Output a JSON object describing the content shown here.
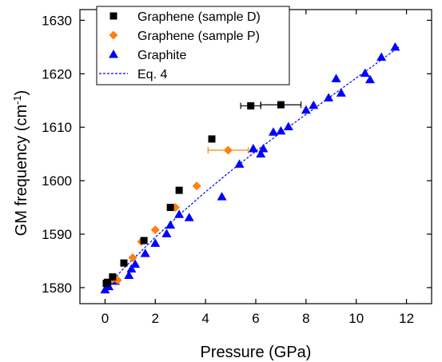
{
  "chart_data": {
    "type": "scatter",
    "xlabel": "Pressure (GPa)",
    "ylabel": {
      "main": "GM frequency (cm",
      "sup": "-1",
      "close": ")"
    },
    "xlim": [
      -1,
      13
    ],
    "ylim": [
      1577,
      1632
    ],
    "xticks": [
      0,
      2,
      4,
      6,
      8,
      10,
      12
    ],
    "yticks": [
      1580,
      1590,
      1600,
      1610,
      1620,
      1630
    ],
    "legend_position": "top-left",
    "series": [
      {
        "name": "Graphene (sample D)",
        "marker": "square",
        "color": "#000000",
        "points": [
          {
            "x": 0.05,
            "y": 1580.8
          },
          {
            "x": 0.1,
            "y": 1581.0
          },
          {
            "x": 0.3,
            "y": 1582.0
          },
          {
            "x": 0.75,
            "y": 1584.6
          },
          {
            "x": 1.55,
            "y": 1588.8
          },
          {
            "x": 2.6,
            "y": 1595.0
          },
          {
            "x": 2.95,
            "y": 1598.2
          },
          {
            "x": 4.25,
            "y": 1607.8
          },
          {
            "x": 5.8,
            "y": 1614.0,
            "xerr": 0.4
          },
          {
            "x": 7.0,
            "y": 1614.2,
            "xerr": 0.8
          }
        ]
      },
      {
        "name": "Graphene (sample P)",
        "marker": "diamond",
        "color": "#ff7f0e",
        "points": [
          {
            "x": 0.3,
            "y": 1581.6
          },
          {
            "x": 0.5,
            "y": 1581.4
          },
          {
            "x": 1.1,
            "y": 1585.6
          },
          {
            "x": 1.45,
            "y": 1588.6
          },
          {
            "x": 2.0,
            "y": 1590.8
          },
          {
            "x": 2.8,
            "y": 1595.0
          },
          {
            "x": 3.65,
            "y": 1599.0
          },
          {
            "x": 4.9,
            "y": 1605.7,
            "xerr": 0.8
          }
        ]
      },
      {
        "name": "Graphite",
        "marker": "triangle",
        "color": "#0000ff",
        "points": [
          {
            "x": 0.0,
            "y": 1579.6
          },
          {
            "x": 0.15,
            "y": 1580.2
          },
          {
            "x": 0.4,
            "y": 1581.2
          },
          {
            "x": 0.95,
            "y": 1582.3
          },
          {
            "x": 1.05,
            "y": 1583.5
          },
          {
            "x": 1.2,
            "y": 1584.4
          },
          {
            "x": 1.6,
            "y": 1586.4
          },
          {
            "x": 2.0,
            "y": 1588.3
          },
          {
            "x": 2.45,
            "y": 1590.1
          },
          {
            "x": 2.6,
            "y": 1591.7
          },
          {
            "x": 2.95,
            "y": 1593.7
          },
          {
            "x": 3.35,
            "y": 1593.1
          },
          {
            "x": 4.65,
            "y": 1597.0
          },
          {
            "x": 5.35,
            "y": 1603.1
          },
          {
            "x": 5.9,
            "y": 1606.0
          },
          {
            "x": 6.2,
            "y": 1605.0
          },
          {
            "x": 6.3,
            "y": 1606.0
          },
          {
            "x": 6.7,
            "y": 1609.1
          },
          {
            "x": 7.0,
            "y": 1609.3
          },
          {
            "x": 7.3,
            "y": 1610.1
          },
          {
            "x": 8.0,
            "y": 1613.2
          },
          {
            "x": 8.3,
            "y": 1614.1
          },
          {
            "x": 8.9,
            "y": 1615.5
          },
          {
            "x": 9.2,
            "y": 1619.1
          },
          {
            "x": 9.4,
            "y": 1616.4
          },
          {
            "x": 10.35,
            "y": 1620.1
          },
          {
            "x": 10.55,
            "y": 1618.9
          },
          {
            "x": 11.0,
            "y": 1623.1
          },
          {
            "x": 11.55,
            "y": 1625.0
          }
        ]
      },
      {
        "name": "Eq. 4",
        "type": "line",
        "style": "dashed",
        "color": "#0000ff",
        "x": [
          0,
          0.5,
          1,
          2,
          3,
          4,
          5,
          6,
          7,
          8,
          9,
          10,
          11,
          11.7
        ],
        "y": [
          1580.0,
          1582.4,
          1584.8,
          1589.4,
          1593.8,
          1597.9,
          1601.8,
          1605.5,
          1609.0,
          1612.4,
          1615.8,
          1619.2,
          1622.6,
          1625.0
        ]
      }
    ]
  }
}
